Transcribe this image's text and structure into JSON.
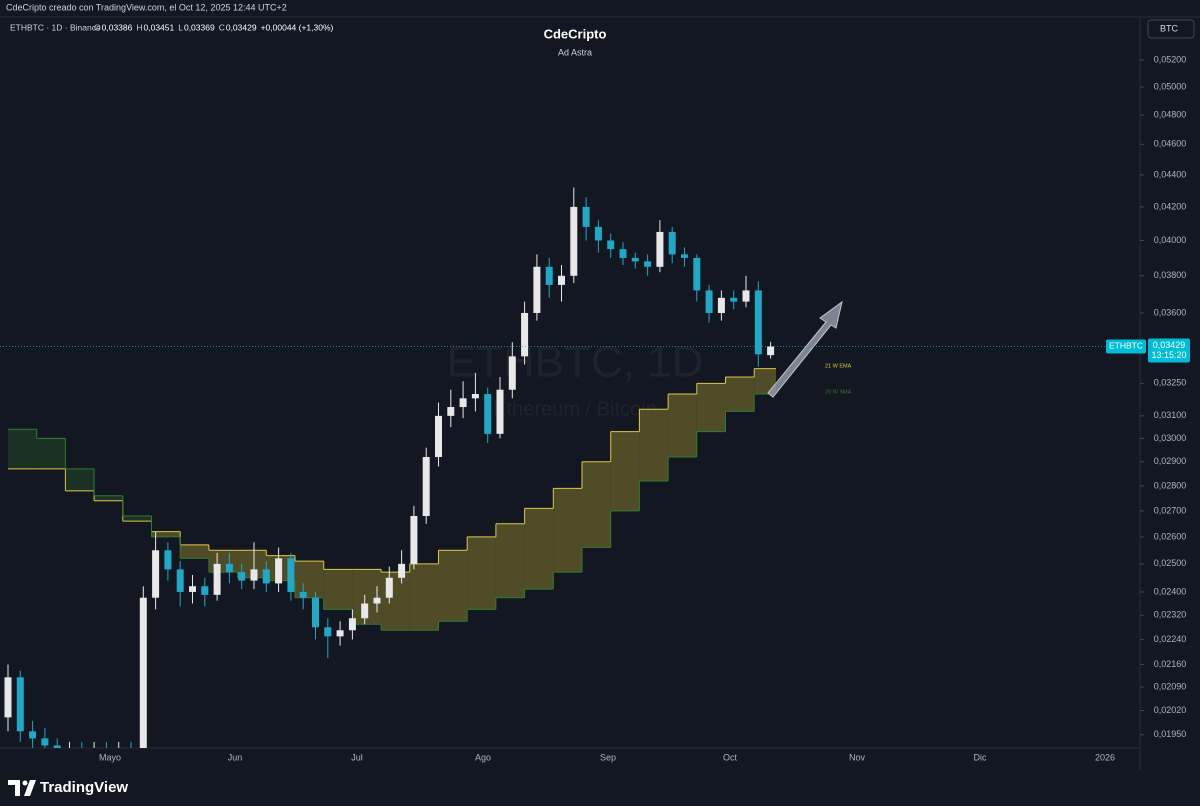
{
  "header": {
    "caption": "CdeCripto creado con TradingView.com, el Oct 12, 2025 12:44 UTC+2",
    "symbol": "ETHBTC · 1D · Binance",
    "ohlc": [
      {
        "key": "O",
        "value": "0,03386"
      },
      {
        "key": "H",
        "value": "0,03451"
      },
      {
        "key": "L",
        "value": "0,03369"
      },
      {
        "key": "C",
        "value": "0,03429"
      }
    ],
    "change": "+0,00044 (+1,30%)",
    "currency": "BTC"
  },
  "footer": {
    "logo": "TradingView"
  },
  "chart_data": {
    "type": "candlestick",
    "title": "CdeCripto",
    "subtitle": "Ad Astra",
    "watermark": "ETHBTC, 1D",
    "watermark_sub": "Ethereum / Bitcoin",
    "log_scale": true,
    "grid": false,
    "up_color": "#e8e8e8",
    "down_color": "#22a7c6",
    "ylim": [
      0.01913,
      0.05527
    ],
    "yticks": [
      {
        "value": 0.052,
        "label": "0,05200"
      },
      {
        "value": 0.05,
        "label": "0,05000"
      },
      {
        "value": 0.048,
        "label": "0,04800"
      },
      {
        "value": 0.046,
        "label": "0,04600"
      },
      {
        "value": 0.044,
        "label": "0,04400"
      },
      {
        "value": 0.042,
        "label": "0,04200"
      },
      {
        "value": 0.04,
        "label": "0,04000"
      },
      {
        "value": 0.038,
        "label": "0,03800"
      },
      {
        "value": 0.036,
        "label": "0,03600"
      },
      {
        "value": 0.0325,
        "label": "0,03250"
      },
      {
        "value": 0.031,
        "label": "0,03100"
      },
      {
        "value": 0.03,
        "label": "0,03000"
      },
      {
        "value": 0.029,
        "label": "0,02900"
      },
      {
        "value": 0.028,
        "label": "0,02800"
      },
      {
        "value": 0.027,
        "label": "0,02700"
      },
      {
        "value": 0.026,
        "label": "0,02600"
      },
      {
        "value": 0.025,
        "label": "0,02500"
      },
      {
        "value": 0.024,
        "label": "0,02400"
      },
      {
        "value": 0.0232,
        "label": "0,02320"
      },
      {
        "value": 0.0224,
        "label": "0,02240"
      },
      {
        "value": 0.0216,
        "label": "0,02160"
      },
      {
        "value": 0.0209,
        "label": "0,02090"
      },
      {
        "value": 0.0202,
        "label": "0,02020"
      },
      {
        "value": 0.0195,
        "label": "0,01950"
      }
    ],
    "x_labels": [
      "Mayo",
      "Jun",
      "Jul",
      "Ago",
      "Sep",
      "Oct",
      "Nov",
      "Dic",
      "2026"
    ],
    "candles": {
      "open": [
        0.02,
        0.0212,
        0.0196,
        0.0194,
        0.0192,
        0.019,
        0.0191,
        0.019,
        0.0191,
        0.019,
        0.0191,
        0.019,
        0.0238,
        0.0255,
        0.0248,
        0.024,
        0.0242,
        0.0239,
        0.025,
        0.0247,
        0.0244,
        0.0248,
        0.0243,
        0.0252,
        0.024,
        0.0238,
        0.0228,
        0.0225,
        0.0227,
        0.0231,
        0.0236,
        0.0238,
        0.0245,
        0.025,
        0.0268,
        0.0292,
        0.031,
        0.0314,
        0.0318,
        0.032,
        0.0302,
        0.0322,
        0.0338,
        0.036,
        0.0385,
        0.0375,
        0.038,
        0.042,
        0.0408,
        0.04,
        0.0395,
        0.039,
        0.0388,
        0.0385,
        0.0405,
        0.0392,
        0.039,
        0.0372,
        0.036,
        0.0368,
        0.0366,
        0.0372,
        0.03386
      ],
      "high": [
        0.0216,
        0.0214,
        0.0199,
        0.0197,
        0.0194,
        0.0193,
        0.0193,
        0.0193,
        0.0193,
        0.0193,
        0.0193,
        0.0242,
        0.0262,
        0.0258,
        0.0251,
        0.0246,
        0.0245,
        0.0254,
        0.0254,
        0.025,
        0.0258,
        0.0251,
        0.0256,
        0.0254,
        0.0243,
        0.024,
        0.0231,
        0.023,
        0.0234,
        0.0239,
        0.0242,
        0.0249,
        0.0255,
        0.0272,
        0.0296,
        0.0316,
        0.0322,
        0.0326,
        0.033,
        0.0323,
        0.0328,
        0.0345,
        0.0366,
        0.0392,
        0.039,
        0.0386,
        0.0432,
        0.0426,
        0.0412,
        0.0404,
        0.0399,
        0.0393,
        0.0392,
        0.0412,
        0.0408,
        0.0396,
        0.0392,
        0.0375,
        0.0372,
        0.0372,
        0.038,
        0.0377,
        0.03451
      ],
      "low": [
        0.0196,
        0.0193,
        0.0191,
        0.0189,
        0.0188,
        0.0188,
        0.0188,
        0.0188,
        0.0188,
        0.0188,
        0.0188,
        0.0188,
        0.0234,
        0.0244,
        0.0235,
        0.0236,
        0.0235,
        0.0237,
        0.0243,
        0.0241,
        0.0241,
        0.024,
        0.024,
        0.0237,
        0.0234,
        0.0224,
        0.0218,
        0.0222,
        0.0224,
        0.0229,
        0.0233,
        0.0236,
        0.0243,
        0.0248,
        0.0265,
        0.0288,
        0.0305,
        0.0309,
        0.0312,
        0.0298,
        0.03,
        0.0318,
        0.0334,
        0.0356,
        0.0368,
        0.0366,
        0.0376,
        0.04,
        0.0393,
        0.039,
        0.0386,
        0.0384,
        0.038,
        0.0382,
        0.0387,
        0.0385,
        0.0366,
        0.0355,
        0.0356,
        0.0362,
        0.0363,
        0.0333,
        0.03369
      ],
      "close": [
        0.0212,
        0.0196,
        0.0194,
        0.0192,
        0.019,
        0.0191,
        0.019,
        0.0191,
        0.019,
        0.0191,
        0.019,
        0.0238,
        0.0255,
        0.0248,
        0.024,
        0.0242,
        0.0239,
        0.025,
        0.0247,
        0.0244,
        0.0248,
        0.0243,
        0.0252,
        0.024,
        0.0238,
        0.0228,
        0.0225,
        0.0227,
        0.0231,
        0.0236,
        0.0238,
        0.0245,
        0.025,
        0.0268,
        0.0292,
        0.031,
        0.0314,
        0.0318,
        0.032,
        0.0302,
        0.0322,
        0.0338,
        0.036,
        0.0385,
        0.0375,
        0.038,
        0.042,
        0.0408,
        0.04,
        0.0395,
        0.039,
        0.0388,
        0.0385,
        0.0405,
        0.0392,
        0.039,
        0.0372,
        0.036,
        0.0368,
        0.0366,
        0.0372,
        0.0339,
        0.03429
      ]
    },
    "overlays": [
      {
        "name": "21 W EMA",
        "color": "#e0c84a",
        "values": [
          0.0287,
          0.0287,
          0.0278,
          0.0274,
          0.0266,
          0.0262,
          0.0257,
          0.0255,
          0.0255,
          0.0253,
          0.0251,
          0.0248,
          0.0248,
          0.0247,
          0.025,
          0.0255,
          0.026,
          0.0265,
          0.0271,
          0.0279,
          0.029,
          0.0303,
          0.0313,
          0.032,
          0.0325,
          0.0328,
          0.0332
        ]
      },
      {
        "name": "20 W SMA",
        "color": "#2e7d32",
        "values": [
          0.0304,
          0.03,
          0.0287,
          0.0276,
          0.0268,
          0.026,
          0.0252,
          0.0247,
          0.0245,
          0.0244,
          0.0238,
          0.0234,
          0.0229,
          0.0227,
          0.0227,
          0.023,
          0.0234,
          0.0238,
          0.0241,
          0.0247,
          0.0256,
          0.027,
          0.0282,
          0.0292,
          0.0303,
          0.0312,
          0.032
        ]
      }
    ],
    "band_up_color": "#5a5628",
    "band_down_color": "#1d3624",
    "last_price": {
      "symbol": "ETHBTC",
      "value": 0.03429,
      "label": "0,03429",
      "countdown": "13:15:20",
      "color": "#00bcd4"
    }
  }
}
